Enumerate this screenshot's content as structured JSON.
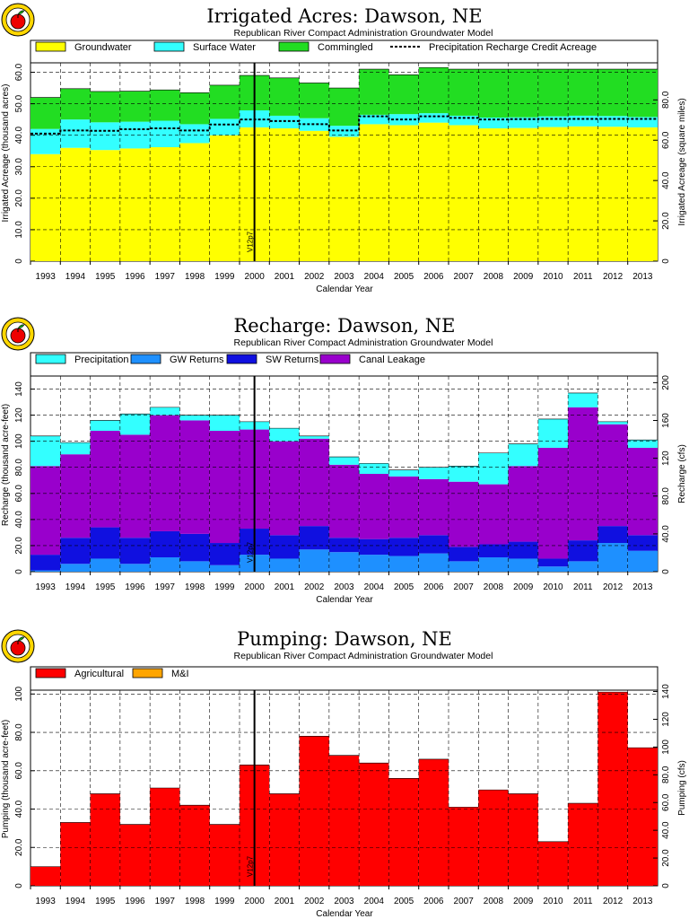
{
  "colors": {
    "groundwater": "#ffff00",
    "surface_water": "#33ffff",
    "commingled": "#22dd22",
    "precipitation": "#33ffff",
    "gw_returns": "#1e90ff",
    "sw_returns": "#1010e0",
    "canal_leakage": "#9900cc",
    "agricultural": "#ff0000",
    "mi": "#ffa500"
  },
  "icon": "apple-seal-icon",
  "chart_data": [
    {
      "type": "area",
      "title": "Irrigated Acres: Dawson, NE",
      "subtitle": "Republican River Compact Administration Groundwater Model",
      "xlabel": "Calendar Year",
      "ylabel": "Irrigated Acreage (thousand acres)",
      "ylabel_right": "Irrigated Acreage (square miles)",
      "categories": [
        "1993",
        "1994",
        "1995",
        "1996",
        "1997",
        "1998",
        "1999",
        "2000",
        "2001",
        "2002",
        "2003",
        "2004",
        "2005",
        "2006",
        "2007",
        "2008",
        "2009",
        "2010",
        "2011",
        "2012",
        "2013"
      ],
      "ylim": [
        0,
        63
      ],
      "yticks": [
        "0",
        "10.0",
        "20.0",
        "30.0",
        "40.0",
        "50.0",
        "60.0"
      ],
      "ylim_right": [
        0,
        98.4
      ],
      "yticks_right": [
        "0",
        "20.0",
        "40.0",
        "60.0",
        "80.0"
      ],
      "yticks_right_values": [
        0,
        20,
        40,
        60,
        80
      ],
      "marker_label": "V12p7",
      "marker_position": 7.5,
      "series": [
        {
          "name": "Groundwater",
          "values": [
            34,
            36,
            35.3,
            35.8,
            36.2,
            37.5,
            40,
            42.5,
            42.2,
            41.4,
            39.5,
            43.5,
            43.2,
            44,
            43.2,
            42.2,
            42.3,
            42.6,
            42.8,
            42.7,
            42.5
          ]
        },
        {
          "name": "Surface Water",
          "values": [
            8,
            9,
            8.8,
            8.5,
            8.4,
            6,
            5.2,
            5.4,
            4,
            4,
            3.5,
            3,
            3.5,
            3,
            3,
            3.4,
            3.4,
            3.4,
            3.4,
            3.4,
            3.3
          ]
        },
        {
          "name": "Commingled",
          "values": [
            10,
            9.8,
            9.8,
            9.7,
            9.8,
            10,
            10.7,
            11.1,
            12,
            11.2,
            12,
            14.5,
            12.5,
            14.5,
            14.8,
            15.4,
            15.3,
            15,
            14.8,
            14.9,
            15.2
          ]
        }
      ],
      "line_series": {
        "name": "Precipitation Recharge Credit Acreage",
        "values": [
          40.5,
          41.5,
          41.4,
          41.9,
          42.2,
          41.5,
          43.4,
          45,
          44.5,
          43.5,
          41.5,
          46,
          45,
          46,
          45.5,
          45,
          45.1,
          45.2,
          45.2,
          45.2,
          45.2
        ]
      }
    },
    {
      "type": "area",
      "title": "Recharge: Dawson, NE",
      "subtitle": "Republican River Compact Administration Groundwater Model",
      "xlabel": "Calendar Year",
      "ylabel": "Recharge (thousand acre-feet)",
      "ylabel_right": "Recharge (cfs)",
      "categories": [
        "1993",
        "1994",
        "1995",
        "1996",
        "1997",
        "1998",
        "1999",
        "2000",
        "2001",
        "2002",
        "2003",
        "2004",
        "2005",
        "2006",
        "2007",
        "2008",
        "2009",
        "2010",
        "2011",
        "2012",
        "2013"
      ],
      "ylim": [
        0,
        150
      ],
      "yticks": [
        "0",
        "20.0",
        "40.0",
        "60.0",
        "80.0",
        "100",
        "120",
        "140"
      ],
      "ylim_right": [
        0,
        207
      ],
      "yticks_right": [
        "0",
        "40.0",
        "80.0",
        "120",
        "160",
        "200"
      ],
      "yticks_right_values": [
        0,
        40,
        80,
        120,
        160,
        200
      ],
      "marker_label": "V12p7",
      "marker_position": 7.5,
      "series": [
        {
          "name": "GW Returns",
          "values": [
            1,
            6,
            10,
            6,
            11,
            8,
            5,
            13,
            10,
            17,
            15,
            13,
            12,
            14,
            8,
            11,
            10,
            4,
            8,
            22,
            16
          ]
        },
        {
          "name": "SW Returns",
          "values": [
            12,
            20,
            24,
            20,
            20,
            21,
            17,
            20,
            18,
            18,
            11,
            12,
            14,
            14,
            11,
            10,
            13,
            6,
            16,
            13,
            12
          ]
        },
        {
          "name": "Canal Leakage",
          "values": [
            68,
            64,
            74,
            79,
            89,
            87,
            86,
            76,
            72,
            67,
            56,
            50,
            47,
            43,
            50,
            46,
            58,
            85,
            102,
            78,
            67
          ]
        },
        {
          "name": "Precipitation",
          "values": [
            23,
            9,
            8,
            16,
            6,
            4,
            12,
            6,
            10,
            2,
            6,
            8,
            5,
            9,
            12,
            24,
            17,
            22,
            11,
            2,
            6
          ]
        }
      ]
    },
    {
      "type": "bar",
      "title": "Pumping: Dawson, NE",
      "subtitle": "Republican River Compact Administration Groundwater Model",
      "xlabel": "Calendar Year",
      "ylabel": "Pumping (thousand acre-feet)",
      "ylabel_right": "Pumping (cfs)",
      "categories": [
        "1993",
        "1994",
        "1995",
        "1996",
        "1997",
        "1998",
        "1999",
        "2000",
        "2001",
        "2002",
        "2003",
        "2004",
        "2005",
        "2006",
        "2007",
        "2008",
        "2009",
        "2010",
        "2011",
        "2012",
        "2013"
      ],
      "ylim": [
        0,
        102
      ],
      "yticks": [
        "0",
        "20.0",
        "40.0",
        "60.0",
        "80.0",
        "100"
      ],
      "ylim_right": [
        0,
        141
      ],
      "yticks_right": [
        "0",
        "20.0",
        "40.0",
        "60.0",
        "80.0",
        "100",
        "120",
        "140"
      ],
      "yticks_right_values": [
        0,
        20,
        40,
        60,
        80,
        100,
        120,
        140
      ],
      "marker_label": "V12p7",
      "marker_position": 7.5,
      "series": [
        {
          "name": "Agricultural",
          "values": [
            10,
            33,
            48,
            32,
            51,
            42,
            32,
            63,
            48,
            78,
            68,
            64,
            56,
            66,
            41,
            50,
            48,
            23,
            43,
            101,
            72
          ]
        },
        {
          "name": "M&I",
          "values": [
            0,
            0,
            0,
            0,
            0,
            0,
            0,
            0,
            0,
            0,
            0,
            0,
            0,
            0,
            0,
            0,
            0,
            0,
            0,
            0,
            0
          ]
        }
      ]
    }
  ]
}
